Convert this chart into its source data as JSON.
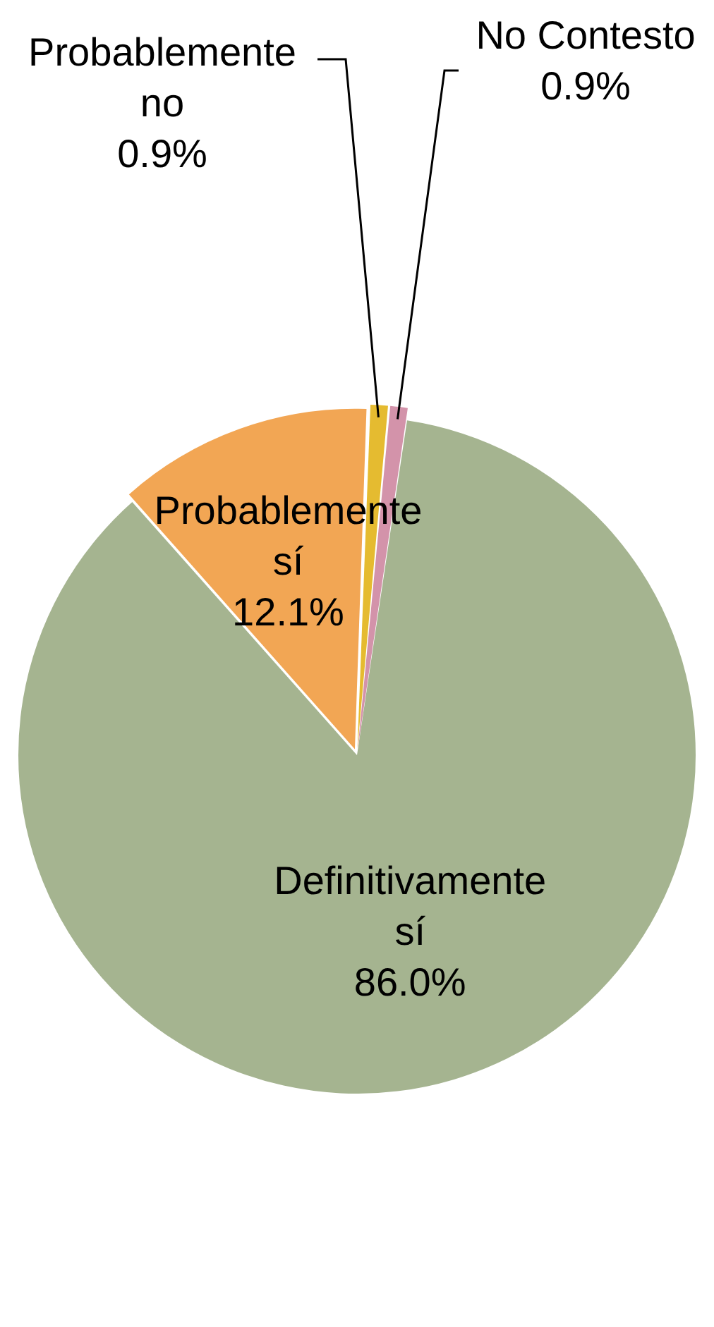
{
  "chart_data": {
    "type": "pie",
    "categories": [
      "Definitivamente sí",
      "Probablemente sí",
      "Probablemente no",
      "No Contesto"
    ],
    "values": [
      86.0,
      12.1,
      0.9,
      0.9
    ],
    "colors": [
      "#a5b490",
      "#f2a654",
      "#e5bb30",
      "#d393aa"
    ],
    "value_labels": [
      "86.0%",
      "12.1%",
      "0.9%",
      "0.9%"
    ],
    "legend": false
  }
}
